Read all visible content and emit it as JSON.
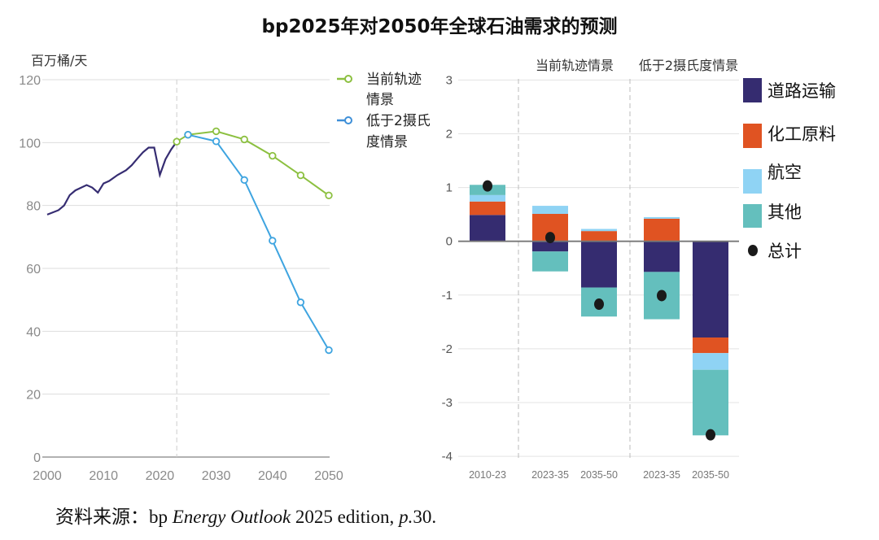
{
  "title": "bp2025年对2050年全球石油需求的预测",
  "source": {
    "prefix": "资料来源：bp ",
    "italic1": "Energy Outlook",
    "mid": " 2025 edition, ",
    "italic2": "p.",
    "suffix": "30."
  },
  "colors": {
    "history": "#362d72",
    "current": "#8cc040",
    "below2": "#3ea4e0",
    "road": "#352c70",
    "petchem": "#e05322",
    "aviation": "#8fd3f4",
    "other": "#64bfbd",
    "total": "#1a1a1a"
  },
  "chart_data": [
    {
      "type": "line",
      "ylabel": "百万桶/天",
      "ylim": [
        0,
        120
      ],
      "yticks": [
        0,
        20,
        40,
        60,
        80,
        100,
        120
      ],
      "xlim": [
        2000,
        2050
      ],
      "xticks": [
        2000,
        2010,
        2020,
        2030,
        2040,
        2050
      ],
      "grid": true,
      "divider_year": 2023,
      "legend": {
        "current": [
          "当前轨迹",
          "情景"
        ],
        "below2": [
          "低于2摄氏",
          "度情景"
        ]
      },
      "history": {
        "x": [
          2000,
          2002,
          2003,
          2004,
          2005,
          2007,
          2008,
          2009,
          2010,
          2011,
          2012.5,
          2014,
          2015,
          2016,
          2017,
          2018,
          2019,
          2020,
          2021,
          2022,
          2023
        ],
        "y": [
          77.1,
          78.5,
          80.0,
          83.3,
          84.8,
          86.5,
          85.7,
          84.1,
          87.0,
          87.8,
          89.7,
          91.2,
          92.8,
          94.9,
          96.9,
          98.4,
          98.4,
          89.7,
          94.7,
          97.8,
          100.3
        ]
      },
      "series": [
        {
          "name": "当前轨迹情景",
          "x": [
            2023,
            2025,
            2030,
            2035,
            2040,
            2045,
            2050
          ],
          "y": [
            100.3,
            102.5,
            103.6,
            101.0,
            95.8,
            89.6,
            83.2
          ]
        },
        {
          "name": "低于2摄氏度情景",
          "x": [
            2025,
            2030,
            2035,
            2040,
            2045,
            2050
          ],
          "y": [
            102.5,
            100.4,
            88.1,
            68.8,
            49.2,
            34.0
          ]
        }
      ]
    },
    {
      "type": "bar",
      "stacked": true,
      "ylim": [
        -4,
        3
      ],
      "yticks": [
        3,
        2,
        1,
        0,
        -1,
        -2,
        -3,
        -4
      ],
      "groups": [
        "当前轨迹情景",
        "低于2摄氏度情景"
      ],
      "categories": [
        "2010-23",
        "2023-35",
        "2035-50",
        "2023-35",
        "2035-50"
      ],
      "series": [
        {
          "name": "道路运输",
          "values": [
            0.49,
            -0.19,
            -0.86,
            -0.57,
            -1.79
          ]
        },
        {
          "name": "化工原料",
          "values": [
            0.25,
            0.51,
            0.19,
            0.42,
            -0.29
          ]
        },
        {
          "name": "航空",
          "values": [
            0.12,
            0.15,
            0.04,
            0.03,
            -0.31
          ]
        },
        {
          "name": "其他",
          "values": [
            0.19,
            -0.37,
            -0.54,
            -0.88,
            -1.22
          ]
        }
      ],
      "total": {
        "name": "总计",
        "values": [
          1.03,
          0.07,
          -1.17,
          -1.01,
          -3.6
        ]
      },
      "legend_position": "right"
    }
  ]
}
